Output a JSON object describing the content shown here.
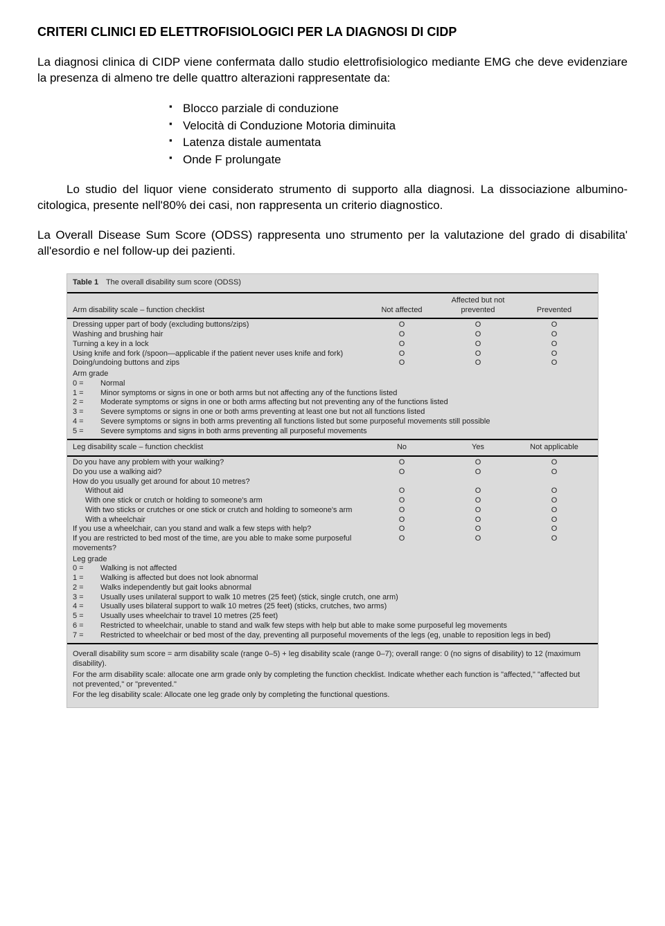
{
  "title": "CRITERI CLINICI ED ELETTROFISIOLOGICI PER LA DIAGNOSI DI CIDP",
  "para1": "La diagnosi clinica di CIDP viene confermata dallo studio elettrofisiologico mediante EMG che deve evidenziare la presenza di almeno tre delle quattro alterazioni rappresentate da:",
  "bullets": [
    "Blocco parziale di conduzione",
    "Velocità di Conduzione Motoria diminuita",
    "Latenza distale aumentata",
    "Onde F prolungate"
  ],
  "para2": "Lo studio del liquor viene considerato strumento di supporto alla diagnosi. La dissociazione albumino-citologica, presente nell'80% dei casi, non rappresenta un criterio diagnostico.",
  "para3": "La Overall Disease Sum Score (ODSS) rappresenta uno strumento per la valutazione del grado di disabilita' all'esordio e nel follow-up dei pazienti.",
  "table": {
    "caption_num": "Table 1",
    "caption_text": "The overall disability sum score (ODSS)",
    "arm_header_label": "Arm disability scale – function checklist",
    "arm_header_cols": [
      "Not affected",
      "Affected but not prevented",
      "Prevented"
    ],
    "arm_rows": [
      "Dressing upper part of body (excluding buttons/zips)",
      "Washing and brushing hair",
      "Turning a key in a lock",
      "Using knife and fork (/spoon—applicable if the patient never uses knife and fork)",
      "Doing/undoing buttons and zips"
    ],
    "arm_grade_title": "Arm grade",
    "arm_grades": [
      {
        "n": "0 =",
        "t": "Normal"
      },
      {
        "n": "1 =",
        "t": "Minor symptoms or signs in one or both arms but not affecting any of the functions listed"
      },
      {
        "n": "2 =",
        "t": "Moderate symptoms or signs in one or both arms affecting but not preventing any of the functions listed"
      },
      {
        "n": "3 =",
        "t": "Severe symptoms or signs in one or both arms preventing at least one but not all functions listed"
      },
      {
        "n": "4 =",
        "t": "Severe symptoms or signs in both arms preventing all functions listed but some purposeful movements still possible"
      },
      {
        "n": "5 =",
        "t": "Severe symptoms and signs in both arms preventing all purposeful movements"
      }
    ],
    "leg_header_label": "Leg disability scale – function checklist",
    "leg_header_cols": [
      "No",
      "Yes",
      "Not applicable"
    ],
    "leg_rows": [
      {
        "t": "Do you have any problem with your walking?",
        "i": 0
      },
      {
        "t": "Do you use a walking aid?",
        "i": 0
      },
      {
        "t": "How do you usually get around for about 10 metres?",
        "i": 0,
        "noO": true
      },
      {
        "t": "Without aid",
        "i": 1
      },
      {
        "t": "With one stick or crutch or holding to someone's arm",
        "i": 1
      },
      {
        "t": "With two sticks or crutches or one stick or crutch and holding to someone's arm",
        "i": 1
      },
      {
        "t": "With a wheelchair",
        "i": 1
      },
      {
        "t": "If you use a wheelchair, can you stand and walk a few steps with help?",
        "i": 0
      },
      {
        "t": "If you are restricted to bed most of the time, are you able to make some purposeful movements?",
        "i": 0
      }
    ],
    "leg_grade_title": "Leg grade",
    "leg_grades": [
      {
        "n": "0 =",
        "t": "Walking is not affected"
      },
      {
        "n": "1 =",
        "t": "Walking is affected but does not look abnormal"
      },
      {
        "n": "2 =",
        "t": "Walks independently but gait looks abnormal"
      },
      {
        "n": "3 =",
        "t": "Usually uses unilateral support to walk 10 metres (25 feet) (stick, single crutch, one arm)"
      },
      {
        "n": "4 =",
        "t": "Usually uses bilateral support to walk 10 metres (25 feet) (sticks, crutches, two arms)"
      },
      {
        "n": "5 =",
        "t": "Usually uses wheelchair to travel 10 metres (25 feet)"
      },
      {
        "n": "6 =",
        "t": "Restricted to wheelchair, unable to stand and walk few steps with help but able to make some purposeful leg movements"
      },
      {
        "n": "7 =",
        "t": "Restricted to wheelchair or bed most of the day, preventing all purposeful movements of the legs (eg, unable to reposition legs in bed)"
      }
    ],
    "footer": [
      "Overall disability sum score = arm disability scale (range 0–5) + leg disability scale (range 0–7); overall range: 0 (no signs of disability) to 12 (maximum disability).",
      "For the arm disability scale: allocate one arm grade only by completing the function checklist. Indicate whether each function is \"affected,\" \"affected but not prevented,\" or \"prevented.\"",
      "For the leg disability scale: Allocate one leg grade only by completing the functional questions."
    ],
    "mark": "O"
  }
}
